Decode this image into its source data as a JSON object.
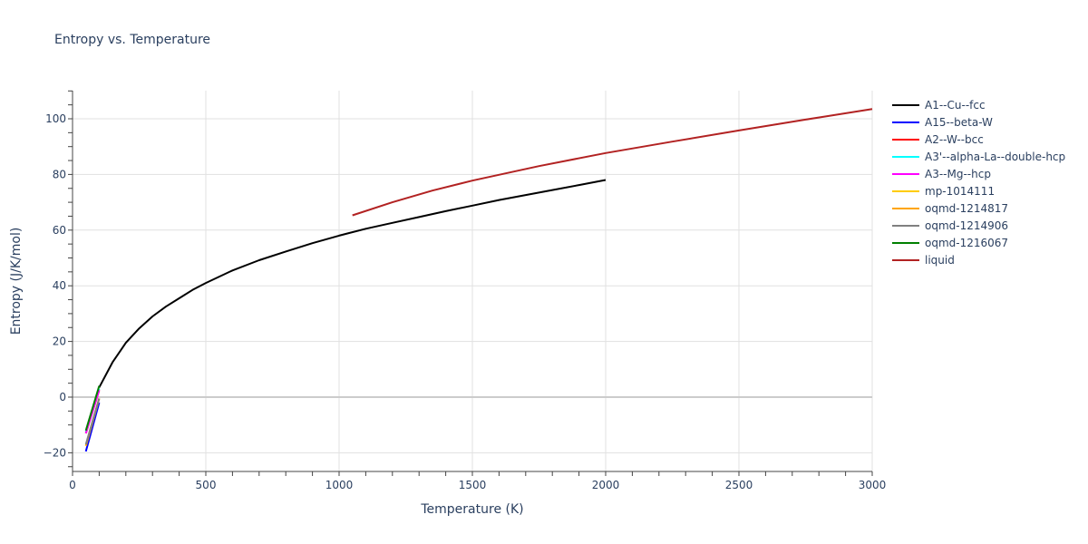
{
  "chart_data": {
    "type": "line",
    "title": "Entropy vs. Temperature",
    "xlabel": "Temperature (K)",
    "ylabel": "Entropy (J/K/mol)",
    "xlim": [
      0,
      3000
    ],
    "ylim": [
      -26,
      110
    ],
    "x_ticks": [
      0,
      500,
      1000,
      1500,
      2000,
      2500,
      3000
    ],
    "y_ticks": [
      -20,
      0,
      20,
      40,
      60,
      80,
      100
    ],
    "grid": true,
    "legend_position": "right",
    "series": [
      {
        "name": "A1--Cu--fcc",
        "color": "#000000",
        "x": [
          100,
          150,
          200,
          250,
          300,
          350,
          400,
          450,
          500,
          600,
          700,
          800,
          900,
          1000,
          1100,
          1200,
          1300,
          1400,
          1500,
          1600,
          1700,
          1800,
          1900,
          2000
        ],
        "y": [
          3.5,
          12.5,
          19.5,
          24.7,
          29.0,
          32.5,
          35.5,
          38.5,
          41.0,
          45.5,
          49.2,
          52.3,
          55.3,
          58.0,
          60.5,
          62.6,
          64.7,
          66.8,
          68.8,
          70.8,
          72.6,
          74.4,
          76.2,
          78.0
        ]
      },
      {
        "name": "A15--beta-W",
        "color": "#0000ff",
        "x": [
          50,
          100
        ],
        "y": [
          -19.5,
          -2.0
        ]
      },
      {
        "name": "A2--W--bcc",
        "color": "#ff0000",
        "x": [
          50,
          100
        ],
        "y": [
          -13.0,
          2.5
        ]
      },
      {
        "name": "A3'--alpha-La--double-hcp",
        "color": "#00ffff",
        "x": [
          50,
          100
        ],
        "y": [
          -12.5,
          3.0
        ]
      },
      {
        "name": "A3--Mg--hcp",
        "color": "#ff00ff",
        "x": [
          50,
          100
        ],
        "y": [
          -13.0,
          2.5
        ]
      },
      {
        "name": "mp-1014111",
        "color": "#ffcc00",
        "x": [
          50,
          100
        ],
        "y": [
          -17.5,
          -0.5
        ]
      },
      {
        "name": "oqmd-1214817",
        "color": "#ffa500",
        "x": [
          50,
          100
        ],
        "y": [
          -17.5,
          -0.5
        ]
      },
      {
        "name": "oqmd-1214906",
        "color": "#808080",
        "x": [
          50,
          100
        ],
        "y": [
          -17.0,
          -0.5
        ]
      },
      {
        "name": "oqmd-1216067",
        "color": "#008000",
        "x": [
          50,
          100
        ],
        "y": [
          -12.0,
          4.0
        ]
      },
      {
        "name": "liquid",
        "color": "#b22222",
        "x": [
          1050,
          1200,
          1350,
          1500,
          1750,
          2000,
          2250,
          2500,
          2750,
          3000
        ],
        "y": [
          65.3,
          70.0,
          74.2,
          77.8,
          83.0,
          87.7,
          91.8,
          95.8,
          99.7,
          103.5
        ]
      }
    ]
  }
}
